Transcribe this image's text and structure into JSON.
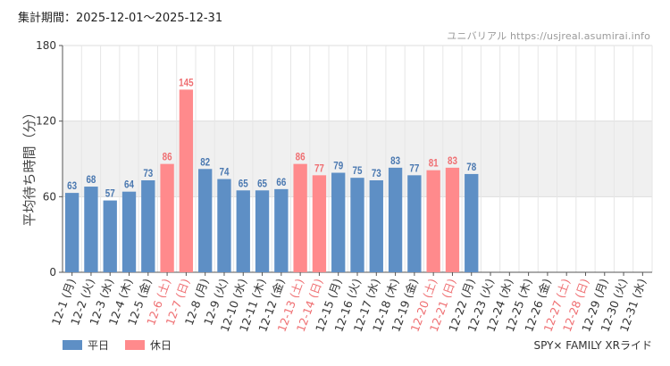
{
  "header": {
    "period": "集計期間：2025-12-01～2025-12-31",
    "source": "ユニバリアル  https://usjreal.asumirai.info"
  },
  "footer": {
    "ride_name": "SPY× FAMILY XRライド"
  },
  "colors": {
    "weekday": "#5e8fc5",
    "holiday": "#ff8a8c",
    "holiday_label": "#ef6f72",
    "weekday_label": "#4a78b0",
    "band": "#f0f0f0"
  },
  "chart_data": {
    "type": "bar",
    "title": "",
    "ylabel": "平均待ち時間（分）",
    "xlabel": "",
    "ylim": [
      0,
      180
    ],
    "yticks": [
      0,
      60,
      120,
      180
    ],
    "band": [
      60,
      120
    ],
    "categories": [
      "12-1 (月)",
      "12-2 (火)",
      "12-3 (水)",
      "12-4 (木)",
      "12-5 (金)",
      "12-6 (土)",
      "12-7 (日)",
      "12-8 (月)",
      "12-9 (火)",
      "12-10 (水)",
      "12-11 (木)",
      "12-12 (金)",
      "12-13 (土)",
      "12-14 (日)",
      "12-15 (月)",
      "12-16 (火)",
      "12-17 (水)",
      "12-18 (木)",
      "12-19 (金)",
      "12-20 (土)",
      "12-21 (日)",
      "12-22 (月)",
      "12-23 (火)",
      "12-24 (水)",
      "12-25 (木)",
      "12-26 (金)",
      "12-27 (土)",
      "12-28 (日)",
      "12-29 (月)",
      "12-30 (火)",
      "12-31 (水)"
    ],
    "values": [
      63,
      68,
      57,
      64,
      73,
      86,
      145,
      82,
      74,
      65,
      65,
      66,
      86,
      77,
      79,
      75,
      73,
      83,
      77,
      81,
      83,
      78,
      null,
      null,
      null,
      null,
      null,
      null,
      null,
      null,
      null
    ],
    "holiday": [
      false,
      false,
      false,
      false,
      false,
      true,
      true,
      false,
      false,
      false,
      false,
      false,
      true,
      true,
      false,
      false,
      false,
      false,
      false,
      true,
      true,
      false,
      false,
      false,
      false,
      false,
      true,
      true,
      false,
      false,
      false
    ],
    "legend": [
      {
        "name": "平日",
        "key": "weekday"
      },
      {
        "name": "休日",
        "key": "holiday"
      }
    ]
  }
}
